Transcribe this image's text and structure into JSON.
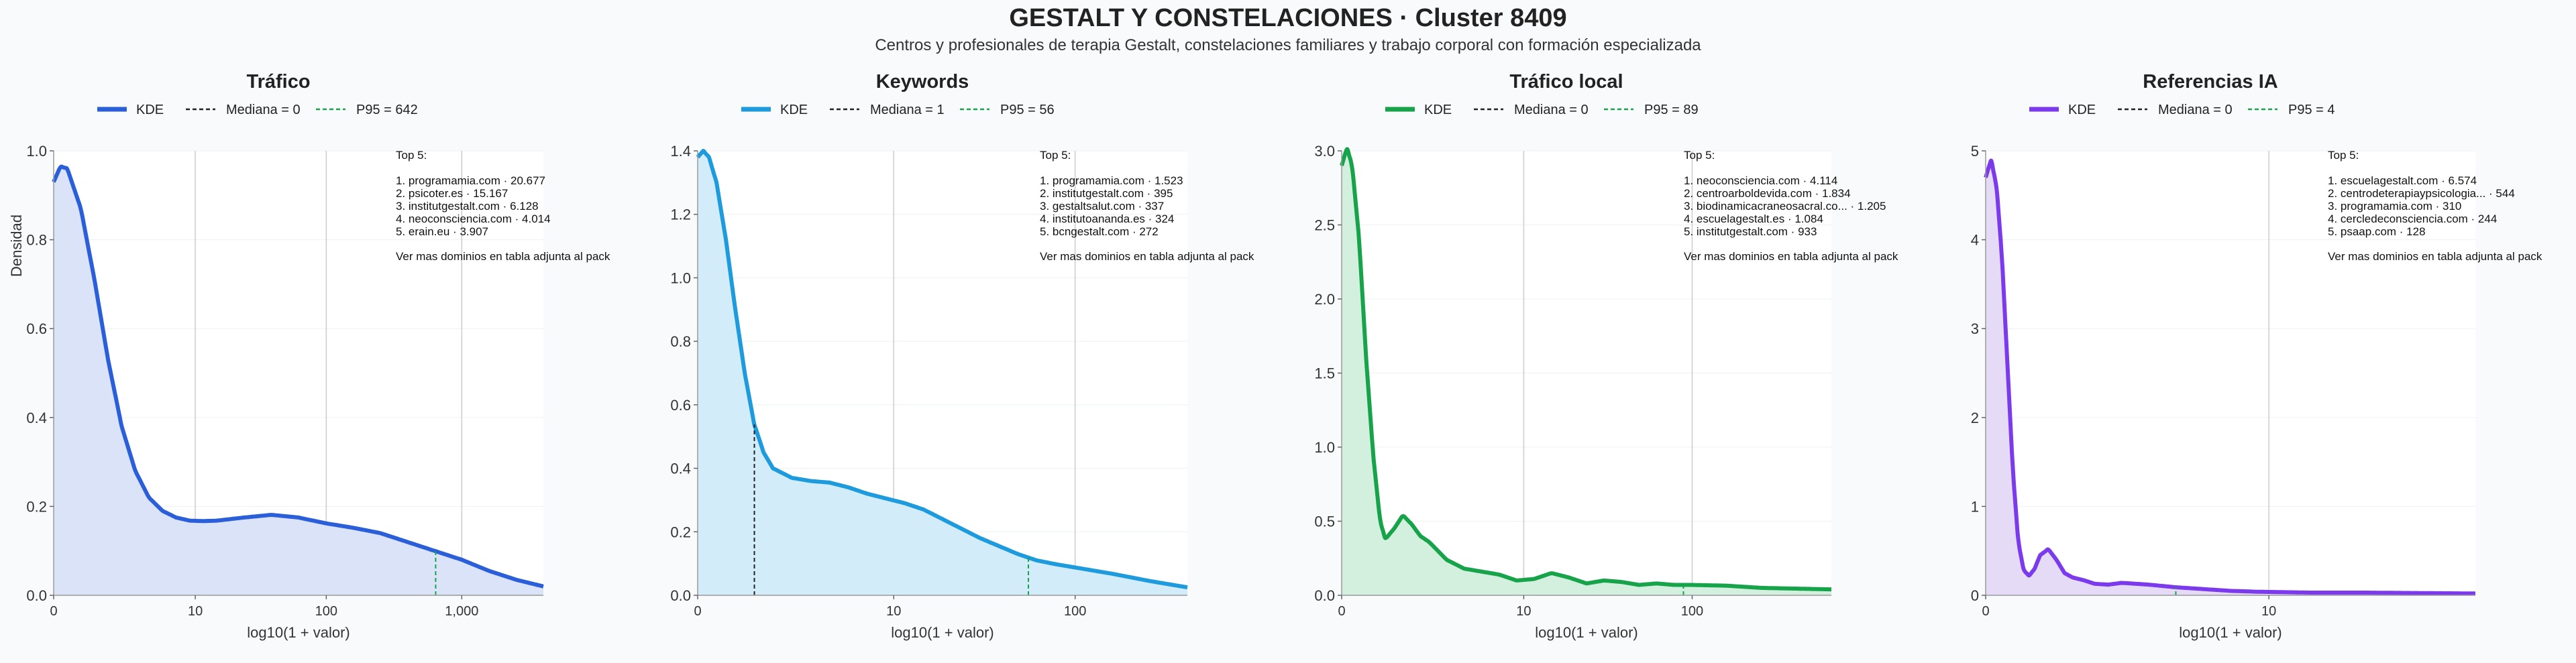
{
  "title": "GESTALT Y CONSTELACIONES · Cluster 8409",
  "subtitle": "Centros y profesionales de terapia Gestalt, constelaciones familiares y trabajo corporal con formación especializada",
  "shared": {
    "xlabel": "log10(1 + valor)",
    "ylabel": "Densidad",
    "legend_kde": "KDE",
    "top_heading": "Top 5:",
    "top_footer": "Ver mas dominios en tabla adjunta al pack"
  },
  "chart_data": [
    {
      "type": "area",
      "title": "Tráfico",
      "color": "#2b5ed9",
      "fill": "#dbe3f8",
      "median_label": "Mediana = 0",
      "p95_label": "P95 = 642",
      "median": 0,
      "p95": 642,
      "xlim": [
        0,
        3.6
      ],
      "ylim": [
        0,
        1.0
      ],
      "xticks": [
        {
          "v": 0,
          "t": "0"
        },
        {
          "v": 1.041,
          "t": "10"
        },
        {
          "v": 2.004,
          "t": "100"
        },
        {
          "v": 3.0,
          "t": "1,000"
        }
      ],
      "yticks": [
        {
          "v": 0,
          "t": "0.0"
        },
        {
          "v": 0.2,
          "t": "0.2"
        },
        {
          "v": 0.4,
          "t": "0.4"
        },
        {
          "v": 0.6,
          "t": "0.6"
        },
        {
          "v": 0.8,
          "t": "0.8"
        },
        {
          "v": 1.0,
          "t": "1.0"
        }
      ],
      "top5": [
        "1. programamia.com · 20.677",
        "2. psicoter.es · 15.167",
        "3. institutgestalt.com · 6.128",
        "4. neoconsciencia.com · 4.014",
        "5. erain.eu · 3.907"
      ],
      "x": [
        0,
        0.05,
        0.1,
        0.2,
        0.3,
        0.4,
        0.5,
        0.6,
        0.7,
        0.8,
        0.9,
        1.0,
        1.1,
        1.2,
        1.4,
        1.6,
        1.8,
        2.0,
        2.2,
        2.4,
        2.6,
        2.8,
        3.0,
        3.2,
        3.4,
        3.6
      ],
      "y": [
        0.93,
        0.965,
        0.96,
        0.87,
        0.71,
        0.53,
        0.38,
        0.28,
        0.22,
        0.19,
        0.175,
        0.168,
        0.167,
        0.168,
        0.175,
        0.181,
        0.175,
        0.162,
        0.152,
        0.14,
        0.12,
        0.1,
        0.08,
        0.055,
        0.035,
        0.02
      ]
    },
    {
      "type": "area",
      "title": "Keywords",
      "color": "#1d9bdd",
      "fill": "#d2ecf9",
      "median_label": "Mediana = 1",
      "p95_label": "P95 = 56",
      "median": 1,
      "p95": 56,
      "xlim": [
        0,
        2.6
      ],
      "ylim": [
        0,
        1.4
      ],
      "xticks": [
        {
          "v": 0,
          "t": "0"
        },
        {
          "v": 1.041,
          "t": "10"
        },
        {
          "v": 2.004,
          "t": "100"
        }
      ],
      "yticks": [
        {
          "v": 0,
          "t": "0.0"
        },
        {
          "v": 0.2,
          "t": "0.2"
        },
        {
          "v": 0.4,
          "t": "0.4"
        },
        {
          "v": 0.6,
          "t": "0.6"
        },
        {
          "v": 0.8,
          "t": "0.8"
        },
        {
          "v": 1.0,
          "t": "1.0"
        },
        {
          "v": 1.2,
          "t": "1.2"
        },
        {
          "v": 1.4,
          "t": "1.4"
        }
      ],
      "top5": [
        "1. programamia.com · 1.523",
        "2. institutgestalt.com · 395",
        "3. gestaltsalut.com · 337",
        "4. institutoananda.es · 324",
        "5. bcngestalt.com · 272"
      ],
      "x": [
        0,
        0.03,
        0.06,
        0.1,
        0.15,
        0.2,
        0.25,
        0.3,
        0.35,
        0.4,
        0.5,
        0.6,
        0.7,
        0.8,
        0.9,
        1.0,
        1.1,
        1.2,
        1.3,
        1.4,
        1.5,
        1.6,
        1.7,
        1.8,
        1.9,
        2.0,
        2.2,
        2.4,
        2.6
      ],
      "y": [
        1.38,
        1.4,
        1.38,
        1.3,
        1.12,
        0.9,
        0.7,
        0.54,
        0.45,
        0.4,
        0.37,
        0.36,
        0.355,
        0.34,
        0.32,
        0.305,
        0.29,
        0.27,
        0.24,
        0.21,
        0.18,
        0.155,
        0.13,
        0.11,
        0.098,
        0.088,
        0.068,
        0.045,
        0.025
      ]
    },
    {
      "type": "area",
      "title": "Tráfico local",
      "color": "#16a34a",
      "fill": "#d3efdd",
      "median_label": "Mediana = 0",
      "p95_label": "P95 = 89",
      "median": 0,
      "p95": 89,
      "xlim": [
        0,
        2.8
      ],
      "ylim": [
        0,
        3.0
      ],
      "xticks": [
        {
          "v": 0,
          "t": "0"
        },
        {
          "v": 1.041,
          "t": "10"
        },
        {
          "v": 2.004,
          "t": "100"
        }
      ],
      "yticks": [
        {
          "v": 0,
          "t": "0.0"
        },
        {
          "v": 0.5,
          "t": "0.5"
        },
        {
          "v": 1.0,
          "t": "1.0"
        },
        {
          "v": 1.5,
          "t": "1.5"
        },
        {
          "v": 2.0,
          "t": "2.0"
        },
        {
          "v": 2.5,
          "t": "2.5"
        },
        {
          "v": 3.0,
          "t": "3.0"
        }
      ],
      "top5": [
        "1. neoconsciencia.com · 4.114",
        "2. centroarboldevida.com · 1.834",
        "3. biodinamicacraneosacral.co... · 1.205",
        "4. escuelagestalt.es · 1.084",
        "5. institutgestalt.com · 933"
      ],
      "x": [
        0,
        0.03,
        0.06,
        0.1,
        0.14,
        0.18,
        0.22,
        0.25,
        0.3,
        0.35,
        0.4,
        0.45,
        0.5,
        0.55,
        0.6,
        0.7,
        0.8,
        0.9,
        1.0,
        1.1,
        1.2,
        1.3,
        1.4,
        1.5,
        1.6,
        1.7,
        1.8,
        1.9,
        2.0,
        2.2,
        2.4,
        2.6,
        2.8
      ],
      "y": [
        2.9,
        3.02,
        2.9,
        2.4,
        1.6,
        0.95,
        0.5,
        0.38,
        0.45,
        0.54,
        0.48,
        0.4,
        0.36,
        0.3,
        0.24,
        0.18,
        0.16,
        0.14,
        0.1,
        0.11,
        0.15,
        0.12,
        0.08,
        0.1,
        0.09,
        0.07,
        0.08,
        0.07,
        0.07,
        0.065,
        0.05,
        0.045,
        0.04
      ]
    },
    {
      "type": "area",
      "title": "Referencias IA",
      "color": "#7c3aed",
      "fill": "#e5dbf7",
      "median_label": "Mediana = 0",
      "p95_label": "P95 = 4",
      "median": 0,
      "p95": 4,
      "xlim": [
        0,
        1.8
      ],
      "ylim": [
        0,
        5
      ],
      "xticks": [
        {
          "v": 0,
          "t": "0"
        },
        {
          "v": 1.041,
          "t": "10"
        }
      ],
      "yticks": [
        {
          "v": 0,
          "t": "0"
        },
        {
          "v": 1,
          "t": "1"
        },
        {
          "v": 2,
          "t": "2"
        },
        {
          "v": 3,
          "t": "3"
        },
        {
          "v": 4,
          "t": "4"
        },
        {
          "v": 5,
          "t": "5"
        }
      ],
      "top5": [
        "1. escuelagestalt.com · 6.574",
        "2. centrodeterapiaypsicologia... · 544",
        "3. programamia.com · 310",
        "4. cercledeconsciencia.com · 244",
        "5. psaap.com · 128"
      ],
      "x": [
        0,
        0.02,
        0.04,
        0.06,
        0.08,
        0.1,
        0.12,
        0.14,
        0.16,
        0.18,
        0.2,
        0.23,
        0.26,
        0.29,
        0.32,
        0.36,
        0.4,
        0.45,
        0.5,
        0.6,
        0.7,
        0.8,
        0.9,
        1.0,
        1.1,
        1.2,
        1.4,
        1.6,
        1.8
      ],
      "y": [
        4.7,
        4.9,
        4.6,
        3.8,
        2.6,
        1.4,
        0.6,
        0.28,
        0.22,
        0.3,
        0.45,
        0.52,
        0.4,
        0.25,
        0.2,
        0.17,
        0.13,
        0.12,
        0.14,
        0.12,
        0.09,
        0.07,
        0.05,
        0.04,
        0.035,
        0.03,
        0.03,
        0.025,
        0.02
      ]
    }
  ]
}
